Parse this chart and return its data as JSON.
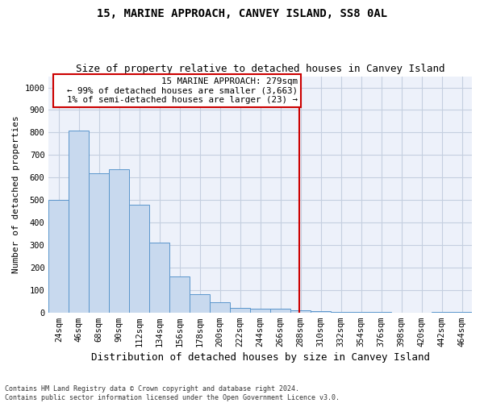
{
  "title": "15, MARINE APPROACH, CANVEY ISLAND, SS8 0AL",
  "subtitle": "Size of property relative to detached houses in Canvey Island",
  "xlabel": "Distribution of detached houses by size in Canvey Island",
  "ylabel": "Number of detached properties",
  "footer": "Contains HM Land Registry data © Crown copyright and database right 2024.\nContains public sector information licensed under the Open Government Licence v3.0.",
  "bins": [
    "24sqm",
    "46sqm",
    "68sqm",
    "90sqm",
    "112sqm",
    "134sqm",
    "156sqm",
    "178sqm",
    "200sqm",
    "222sqm",
    "244sqm",
    "266sqm",
    "288sqm",
    "310sqm",
    "332sqm",
    "354sqm",
    "376sqm",
    "398sqm",
    "420sqm",
    "442sqm",
    "464sqm"
  ],
  "values": [
    500,
    810,
    620,
    635,
    480,
    310,
    160,
    83,
    45,
    22,
    18,
    18,
    8,
    5,
    2,
    1,
    1,
    0,
    0,
    1,
    2
  ],
  "bar_color": "#c8d9ee",
  "bar_edge_color": "#5b96cc",
  "bg_color": "#edf1fa",
  "grid_color": "#c5cfe0",
  "vline_color": "#cc0000",
  "annotation_text": "  15 MARINE APPROACH: 279sqm\n← 99% of detached houses are smaller (3,663)\n  1% of semi-detached houses are larger (23) →",
  "annotation_box_color": "#cc0000",
  "ylim": [
    0,
    1050
  ],
  "title_fontsize": 10,
  "subtitle_fontsize": 9,
  "xlabel_fontsize": 9,
  "ylabel_fontsize": 8,
  "tick_fontsize": 7.5
}
